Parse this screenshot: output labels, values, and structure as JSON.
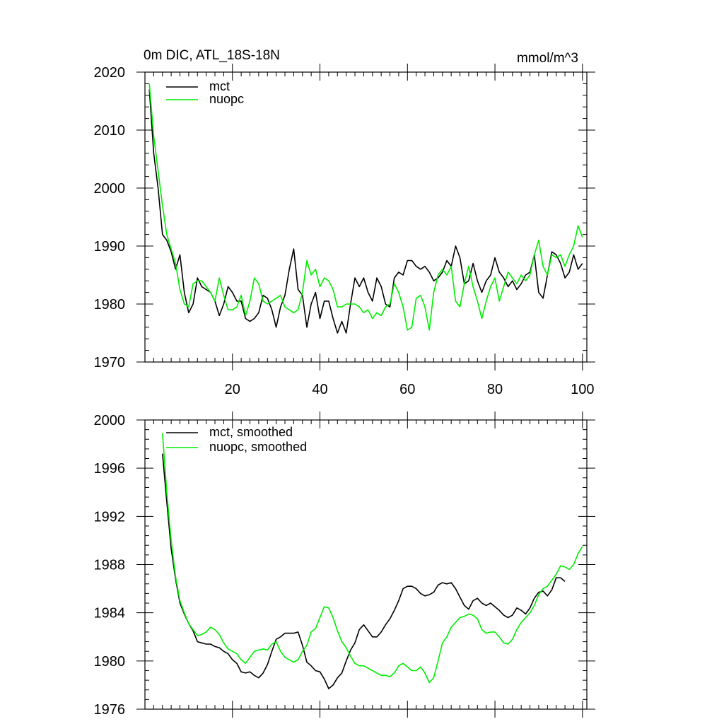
{
  "chart_data": [
    {
      "type": "line",
      "title_left": "0m DIC, ATL_18S-18N",
      "title_right": "mmol/m^3",
      "xlim": [
        0,
        101
      ],
      "ylim": [
        1970,
        2020
      ],
      "xticks": [
        20,
        40,
        60,
        80,
        100
      ],
      "yticks": [
        1970,
        1980,
        1990,
        2000,
        2010,
        2020
      ],
      "legend_position": "top-left",
      "colors": {
        "mct": "#000000",
        "nuopc": "#00ee00"
      },
      "series": [
        {
          "name": "mct",
          "x_start": 1,
          "values": [
            2017,
            2006,
            2000,
            1992,
            1991,
            1989,
            1986,
            1988.5,
            1982,
            1978.5,
            1980,
            1984.5,
            1983,
            1982.5,
            1982,
            1980.5,
            1978,
            1980,
            1983,
            1982,
            1980.5,
            1980.5,
            1977.5,
            1977,
            1977.5,
            1978.5,
            1981.5,
            1981,
            1979,
            1976,
            1979.5,
            1981.5,
            1986,
            1989.5,
            1982.5,
            1981.5,
            1976,
            1980,
            1982,
            1977.5,
            1980.5,
            1980.5,
            1977.5,
            1975,
            1977,
            1975,
            1980,
            1984.5,
            1983,
            1984.5,
            1982,
            1980.5,
            1984.5,
            1983,
            1980,
            1979.5,
            1984.5,
            1985.5,
            1985,
            1987.5,
            1987.5,
            1986.5,
            1986,
            1986.5,
            1985.5,
            1984,
            1984.5,
            1985.5,
            1987.5,
            1986.5,
            1990,
            1988,
            1983.5,
            1984,
            1987,
            1984,
            1982,
            1984,
            1985,
            1988,
            1985.5,
            1984.5,
            1983,
            1984,
            1982.5,
            1983.5,
            1985,
            1985.5,
            1988.5,
            1982,
            1981,
            1985,
            1989,
            1988.5,
            1987,
            1984.5,
            1985.5,
            1988.5,
            1986,
            1987
          ]
        },
        {
          "name": "nuopc",
          "x_start": 1,
          "values": [
            2018,
            2009,
            2003,
            1997,
            1992,
            1989.5,
            1987,
            1982.5,
            1980,
            1979.5,
            1983.5,
            1984,
            1984,
            1983,
            1982,
            1980.5,
            1984.5,
            1981.5,
            1979,
            1979,
            1979.5,
            1981.5,
            1978,
            1980.5,
            1984.5,
            1983.5,
            1980.5,
            1980,
            1980.5,
            1981,
            1981.5,
            1979.5,
            1979,
            1978.5,
            1979,
            1982,
            1987.5,
            1985,
            1986,
            1983,
            1984.5,
            1984,
            1982.5,
            1979.5,
            1979.5,
            1980,
            1980,
            1980,
            1979.5,
            1978.5,
            1979,
            1977.5,
            1978.5,
            1978,
            1979.5,
            1980,
            1983.5,
            1982,
            1979.5,
            1975.5,
            1976,
            1981,
            1981.5,
            1979.5,
            1975.5,
            1982,
            1985,
            1986,
            1985,
            1986.5,
            1980.5,
            1979.5,
            1983.5,
            1986.5,
            1983,
            1980.5,
            1977.5,
            1980.5,
            1983,
            1984.5,
            1980.5,
            1983,
            1985.5,
            1984.5,
            1983.5,
            1985,
            1984,
            1985,
            1988.5,
            1991,
            1986.5,
            1985,
            1988.5,
            1988,
            1988.5,
            1986.5,
            1988.5,
            1990,
            1993.5,
            1991.5
          ]
        }
      ]
    },
    {
      "type": "line",
      "xlim": [
        0,
        101
      ],
      "ylim": [
        1976,
        2000
      ],
      "yticks": [
        1976,
        1980,
        1984,
        1988,
        1992,
        1996,
        2000
      ],
      "legend_position": "top-left",
      "colors": {
        "mct": "#000000",
        "nuopc": "#00ee00"
      },
      "series": [
        {
          "name": "mct, smoothed",
          "x_start": 4,
          "values": [
            1997.2,
            1993.2,
            1989.3,
            1986.8,
            1984.8,
            1983.9,
            1983.1,
            1982.5,
            1981.6,
            1981.5,
            1981.4,
            1981.4,
            1981.2,
            1981.1,
            1980.8,
            1980.6,
            1980.1,
            1979.8,
            1979.1,
            1979.0,
            1979.1,
            1978.8,
            1978.6,
            1979.0,
            1979.7,
            1980.8,
            1981.8,
            1982.0,
            1982.3,
            1982.3,
            1982.3,
            1982.4,
            1981.3,
            1979.9,
            1979.6,
            1979.2,
            1979.1,
            1978.5,
            1977.7,
            1978.0,
            1978.6,
            1979.0,
            1980.0,
            1980.9,
            1981.5,
            1982.6,
            1983.0,
            1982.5,
            1982.0,
            1982.0,
            1982.4,
            1983.0,
            1983.5,
            1984.2,
            1985.0,
            1986.0,
            1986.2,
            1986.2,
            1986.0,
            1985.6,
            1985.4,
            1985.5,
            1985.7,
            1986.3,
            1986.5,
            1986.4,
            1986.5,
            1986.0,
            1985.3,
            1984.6,
            1984.3,
            1985.0,
            1985.2,
            1984.8,
            1984.6,
            1984.8,
            1984.5,
            1984.2,
            1983.8,
            1983.6,
            1983.8,
            1984.4,
            1984.2,
            1983.9,
            1984.4,
            1985.2,
            1985.7,
            1985.8,
            1985.4,
            1985.9,
            1986.9,
            1986.9,
            1986.6
          ]
        },
        {
          "name": "nuopc, smoothed",
          "x_start": 4,
          "values": [
            1998.9,
            1994.0,
            1990.0,
            1987.0,
            1985.0,
            1984.0,
            1983.1,
            1982.6,
            1982.1,
            1982.2,
            1982.4,
            1982.8,
            1982.6,
            1982.2,
            1981.5,
            1981.0,
            1980.8,
            1980.6,
            1980.1,
            1979.8,
            1980.3,
            1980.8,
            1980.9,
            1981.0,
            1980.9,
            1981.4,
            1981.6,
            1980.8,
            1980.3,
            1980.1,
            1979.9,
            1980.1,
            1980.8,
            1981.3,
            1982.4,
            1982.7,
            1983.6,
            1984.5,
            1984.4,
            1983.6,
            1982.5,
            1981.6,
            1981.1,
            1980.4,
            1979.8,
            1979.6,
            1979.6,
            1979.4,
            1979.2,
            1979.0,
            1978.8,
            1978.8,
            1978.7,
            1979.0,
            1979.6,
            1979.8,
            1979.5,
            1979.2,
            1979.2,
            1979.5,
            1979.0,
            1978.2,
            1978.6,
            1980.0,
            1981.5,
            1982.0,
            1982.8,
            1983.2,
            1983.6,
            1983.7,
            1983.9,
            1983.8,
            1983.5,
            1982.6,
            1982.3,
            1982.4,
            1982.4,
            1982.0,
            1981.5,
            1981.4,
            1981.8,
            1982.6,
            1983.2,
            1983.6,
            1984.0,
            1984.6,
            1985.5,
            1986.0,
            1986.2,
            1986.7,
            1987.2,
            1987.9,
            1987.8,
            1987.6,
            1988.0,
            1988.9,
            1989.5
          ]
        }
      ]
    }
  ]
}
